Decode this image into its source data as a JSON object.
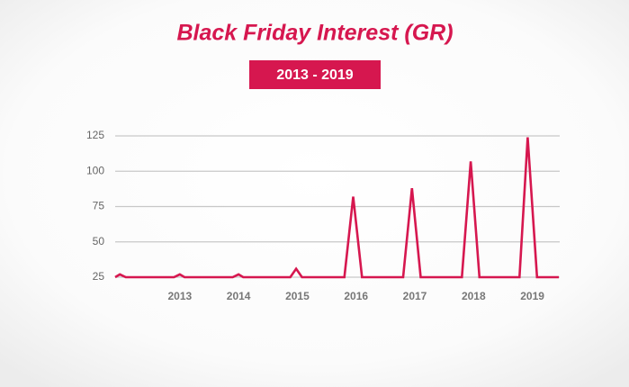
{
  "chart_data": {
    "type": "line",
    "title": "Black Friday Interest (GR)",
    "subtitle": "2013 - 2019",
    "x": [
      2011.9,
      2011.98,
      2012.08,
      2012.9,
      2013.0,
      2013.08,
      2013.9,
      2014.0,
      2014.08,
      2014.88,
      2014.98,
      2015.08,
      2015.8,
      2015.95,
      2016.1,
      2016.8,
      2016.95,
      2017.1,
      2017.8,
      2017.95,
      2018.1,
      2018.78,
      2018.92,
      2019.08,
      2019.45
    ],
    "values": [
      25,
      27,
      25,
      25,
      27,
      25,
      25,
      27,
      25,
      25,
      31,
      25,
      25,
      82,
      25,
      25,
      88,
      25,
      25,
      107,
      25,
      25,
      124,
      25,
      25
    ],
    "color": "#d6174f",
    "xlim": [
      2011.9,
      2019.45
    ],
    "xticks": [
      2013,
      2014,
      2015,
      2016,
      2017,
      2018,
      2019
    ],
    "ylim": [
      25,
      125
    ],
    "yticks": [
      25,
      50,
      75,
      100,
      125
    ],
    "grid": true
  }
}
